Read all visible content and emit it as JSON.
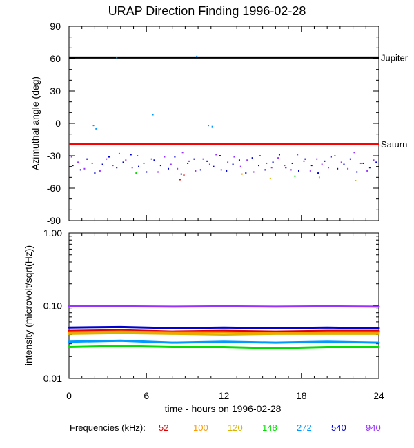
{
  "chart_data": {
    "type": "scatter",
    "title": "URAP Direction Finding  1996-02-28",
    "colors": {
      "52": "#e00000",
      "100": "#ff9900",
      "120": "#d8b400",
      "148": "#00e000",
      "272": "#0099ff",
      "540": "#0000d0",
      "940": "#9933ff"
    },
    "frequency_legend": {
      "label": "Frequencies (kHz):",
      "items": [
        {
          "value": "52",
          "color": "#e00000"
        },
        {
          "value": "100",
          "color": "#ff9900"
        },
        {
          "value": "120",
          "color": "#d8b400"
        },
        {
          "value": "148",
          "color": "#00e000"
        },
        {
          "value": "272",
          "color": "#0099ff"
        },
        {
          "value": "540",
          "color": "#0000d0"
        },
        {
          "value": "940",
          "color": "#9933ff"
        }
      ]
    },
    "xlabel": "time - hours on 1996-02-28",
    "xlim": [
      0,
      24
    ],
    "xticks": [
      "0",
      "6",
      "12",
      "18",
      "24"
    ],
    "panels": [
      {
        "id": "azimuth",
        "type": "scatter",
        "ylabel": "Azimuthal angle (deg)",
        "ylim": [
          -90,
          90
        ],
        "yticks": [
          "90",
          "60",
          "30",
          "0",
          "-30",
          "-60",
          "-90"
        ],
        "reference_lines": [
          {
            "label": "Jupiter",
            "y": 61,
            "color": "#000000"
          },
          {
            "label": "Saturn",
            "y": -19,
            "color": "#ff0000"
          }
        ],
        "series": [
          {
            "name": "940",
            "color": "#9933ff",
            "points": [
              [
                0.2,
                -31
              ],
              [
                0.7,
                -36
              ],
              [
                1.2,
                -42
              ],
              [
                1.8,
                -37
              ],
              [
                2.4,
                -44
              ],
              [
                2.9,
                -33
              ],
              [
                3.4,
                -39
              ],
              [
                3.9,
                -28
              ],
              [
                4.4,
                -34
              ],
              [
                4.9,
                -41
              ],
              [
                5.3,
                -30
              ],
              [
                5.8,
                -37
              ],
              [
                6.4,
                -33
              ],
              [
                6.9,
                -45
              ],
              [
                7.4,
                -31
              ],
              [
                7.9,
                -38
              ],
              [
                8.4,
                -42
              ],
              [
                8.8,
                -27
              ],
              [
                9.3,
                -35
              ],
              [
                9.8,
                -44
              ],
              [
                10.4,
                -33
              ],
              [
                10.9,
                -38
              ],
              [
                11.4,
                -29
              ],
              [
                11.8,
                -43
              ],
              [
                12.3,
                -36
              ],
              [
                12.8,
                -31
              ],
              [
                13.3,
                -40
              ],
              [
                13.8,
                -34
              ],
              [
                14.3,
                -45
              ],
              [
                14.8,
                -30
              ],
              [
                15.3,
                -37
              ],
              [
                15.7,
                -41
              ],
              [
                16.2,
                -32
              ],
              [
                16.7,
                -39
              ],
              [
                17.2,
                -43
              ],
              [
                17.7,
                -29
              ],
              [
                18.2,
                -35
              ],
              [
                18.7,
                -44
              ],
              [
                19.2,
                -33
              ],
              [
                19.6,
                -38
              ],
              [
                20.1,
                -41
              ],
              [
                20.6,
                -30
              ],
              [
                21.1,
                -36
              ],
              [
                21.6,
                -42
              ],
              [
                22.1,
                -27
              ],
              [
                22.6,
                -37
              ],
              [
                23.1,
                -44
              ],
              [
                23.6,
                -34
              ]
            ]
          },
          {
            "name": "540",
            "color": "#0000d0",
            "points": [
              [
                0.3,
                -39
              ],
              [
                0.9,
                -43
              ],
              [
                1.4,
                -33
              ],
              [
                2.0,
                -46
              ],
              [
                2.6,
                -38
              ],
              [
                3.1,
                -31
              ],
              [
                3.7,
                -41
              ],
              [
                4.2,
                -36
              ],
              [
                4.8,
                -29
              ],
              [
                5.4,
                -40
              ],
              [
                6.0,
                -45
              ],
              [
                6.6,
                -34
              ],
              [
                7.1,
                -39
              ],
              [
                7.7,
                -42
              ],
              [
                8.2,
                -31
              ],
              [
                8.7,
                -47
              ],
              [
                9.2,
                -37
              ],
              [
                9.7,
                -33
              ],
              [
                10.2,
                -43
              ],
              [
                10.7,
                -35
              ],
              [
                11.2,
                -40
              ],
              [
                11.7,
                -30
              ],
              [
                12.2,
                -44
              ],
              [
                12.7,
                -38
              ],
              [
                13.2,
                -34
              ],
              [
                13.7,
                -46
              ],
              [
                14.2,
                -32
              ],
              [
                14.7,
                -39
              ],
              [
                15.2,
                -43
              ],
              [
                15.8,
                -36
              ],
              [
                16.3,
                -29
              ],
              [
                16.8,
                -41
              ],
              [
                17.3,
                -37
              ],
              [
                17.8,
                -44
              ],
              [
                18.3,
                -33
              ],
              [
                18.8,
                -39
              ],
              [
                19.3,
                -46
              ],
              [
                19.8,
                -35
              ],
              [
                20.3,
                -31
              ],
              [
                20.8,
                -42
              ],
              [
                21.3,
                -38
              ],
              [
                21.8,
                -33
              ],
              [
                22.3,
                -45
              ],
              [
                22.8,
                -37
              ],
              [
                23.3,
                -41
              ],
              [
                23.8,
                -36
              ]
            ]
          },
          {
            "name": "272",
            "color": "#0099ff",
            "points": [
              [
                1.9,
                -2
              ],
              [
                2.1,
                -5
              ],
              [
                3.7,
                61
              ],
              [
                6.5,
                8
              ],
              [
                9.9,
                62
              ],
              [
                10.8,
                -2
              ],
              [
                11.1,
                -3
              ]
            ]
          },
          {
            "name": "52",
            "color": "#e00000",
            "points": [
              [
                8.6,
                -52
              ],
              [
                8.9,
                -48
              ]
            ]
          },
          {
            "name": "100",
            "color": "#ff9900",
            "points": [
              [
                13.4,
                -47
              ],
              [
                19.4,
                -50
              ]
            ]
          },
          {
            "name": "148",
            "color": "#00e000",
            "points": [
              [
                5.2,
                -46
              ],
              [
                17.5,
                -49
              ]
            ]
          },
          {
            "name": "120",
            "color": "#d8b400",
            "points": [
              [
                15.6,
                -51
              ],
              [
                22.2,
                -53
              ]
            ]
          }
        ]
      },
      {
        "id": "intensity",
        "type": "line",
        "ylabel": "intensity (microvolt/sqrt(Hz))",
        "ylim": [
          0.01,
          1.0
        ],
        "yscale": "log",
        "yticks": [
          "1.00",
          "0.10",
          "0.01"
        ],
        "series": [
          {
            "name": "940",
            "color": "#9933ff",
            "x": [
              0,
              4,
              8,
              12,
              16,
              20,
              24
            ],
            "values": [
              0.099,
              0.098,
              0.097,
              0.098,
              0.097,
              0.098,
              0.097
            ]
          },
          {
            "name": "540",
            "color": "#0000d0",
            "x": [
              0,
              4,
              8,
              12,
              16,
              20,
              24
            ],
            "values": [
              0.05,
              0.051,
              0.049,
              0.05,
              0.049,
              0.05,
              0.049
            ]
          },
          {
            "name": "52",
            "color": "#e00000",
            "x": [
              0,
              4,
              8,
              12,
              16,
              20,
              24
            ],
            "values": [
              0.045,
              0.046,
              0.044,
              0.045,
              0.044,
              0.045,
              0.045
            ]
          },
          {
            "name": "100",
            "color": "#ff9900",
            "x": [
              0,
              4,
              8,
              12,
              16,
              20,
              24
            ],
            "values": [
              0.043,
              0.044,
              0.043,
              0.043,
              0.042,
              0.043,
              0.043
            ]
          },
          {
            "name": "120",
            "color": "#d8b400",
            "x": [
              0,
              4,
              8,
              12,
              16,
              20,
              24
            ],
            "values": [
              0.041,
              0.042,
              0.041,
              0.04,
              0.041,
              0.041,
              0.041
            ]
          },
          {
            "name": "272",
            "color": "#0099ff",
            "x": [
              0,
              4,
              8,
              12,
              16,
              20,
              24
            ],
            "values": [
              0.032,
              0.033,
              0.031,
              0.032,
              0.031,
              0.032,
              0.031
            ]
          },
          {
            "name": "148",
            "color": "#00e000",
            "x": [
              0,
              4,
              8,
              12,
              16,
              20,
              24
            ],
            "values": [
              0.027,
              0.028,
              0.027,
              0.027,
              0.026,
              0.027,
              0.027
            ]
          }
        ]
      }
    ]
  }
}
